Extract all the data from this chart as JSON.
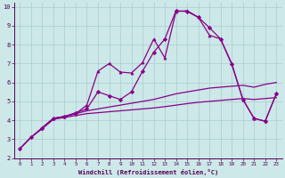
{
  "xlabel": "Windchill (Refroidissement éolien,°C)",
  "bg_color": "#cce8e8",
  "grid_color": "#aacccc",
  "line_color": "#880088",
  "xlim": [
    -0.5,
    23.5
  ],
  "ylim": [
    2,
    10.2
  ],
  "xticks": [
    0,
    1,
    2,
    3,
    4,
    5,
    6,
    7,
    8,
    9,
    10,
    11,
    12,
    13,
    14,
    15,
    16,
    17,
    18,
    19,
    20,
    21,
    22,
    23
  ],
  "yticks": [
    2,
    3,
    4,
    5,
    6,
    7,
    8,
    9,
    10
  ],
  "series": [
    {
      "x": [
        0,
        1,
        2,
        3,
        4,
        5,
        6,
        7,
        8,
        9,
        10,
        11,
        12,
        13,
        14,
        15,
        16,
        17,
        18,
        19,
        20,
        21,
        22,
        23
      ],
      "y": [
        2.5,
        3.1,
        3.55,
        4.05,
        4.15,
        4.25,
        4.35,
        4.4,
        4.45,
        4.5,
        4.55,
        4.6,
        4.65,
        4.72,
        4.8,
        4.88,
        4.95,
        5.0,
        5.05,
        5.1,
        5.15,
        5.1,
        5.15,
        5.2
      ],
      "marker": null,
      "lw": 0.9
    },
    {
      "x": [
        0,
        1,
        2,
        3,
        4,
        5,
        6,
        7,
        8,
        9,
        10,
        11,
        12,
        13,
        14,
        15,
        16,
        17,
        18,
        19,
        20,
        21,
        22,
        23
      ],
      "y": [
        2.5,
        3.1,
        3.6,
        4.1,
        4.2,
        4.35,
        4.5,
        4.6,
        4.7,
        4.8,
        4.9,
        5.0,
        5.1,
        5.25,
        5.4,
        5.5,
        5.6,
        5.7,
        5.75,
        5.8,
        5.85,
        5.75,
        5.9,
        6.0
      ],
      "marker": null,
      "lw": 0.9
    },
    {
      "x": [
        0,
        1,
        2,
        3,
        4,
        5,
        6,
        7,
        8,
        9,
        10,
        11,
        12,
        13,
        14,
        15,
        16,
        17,
        18,
        19,
        20,
        21,
        22,
        23
      ],
      "y": [
        2.5,
        3.1,
        3.6,
        4.1,
        4.2,
        4.4,
        4.6,
        5.5,
        5.3,
        5.1,
        5.5,
        6.6,
        7.6,
        8.3,
        9.8,
        9.75,
        9.45,
        8.9,
        8.3,
        6.95,
        5.1,
        4.1,
        3.95,
        5.4
      ],
      "marker": "D",
      "lw": 0.9
    },
    {
      "x": [
        2,
        3,
        4,
        5,
        6,
        7,
        8,
        9,
        10,
        11,
        12,
        13,
        14,
        15,
        16,
        17,
        18,
        19,
        20,
        21,
        22,
        23
      ],
      "y": [
        3.6,
        4.1,
        4.2,
        4.35,
        4.8,
        6.6,
        7.0,
        6.55,
        6.5,
        7.05,
        8.3,
        7.3,
        9.75,
        9.8,
        9.45,
        8.5,
        8.3,
        7.0,
        5.1,
        4.1,
        3.95,
        5.4
      ],
      "marker": "^",
      "lw": 0.9
    }
  ]
}
